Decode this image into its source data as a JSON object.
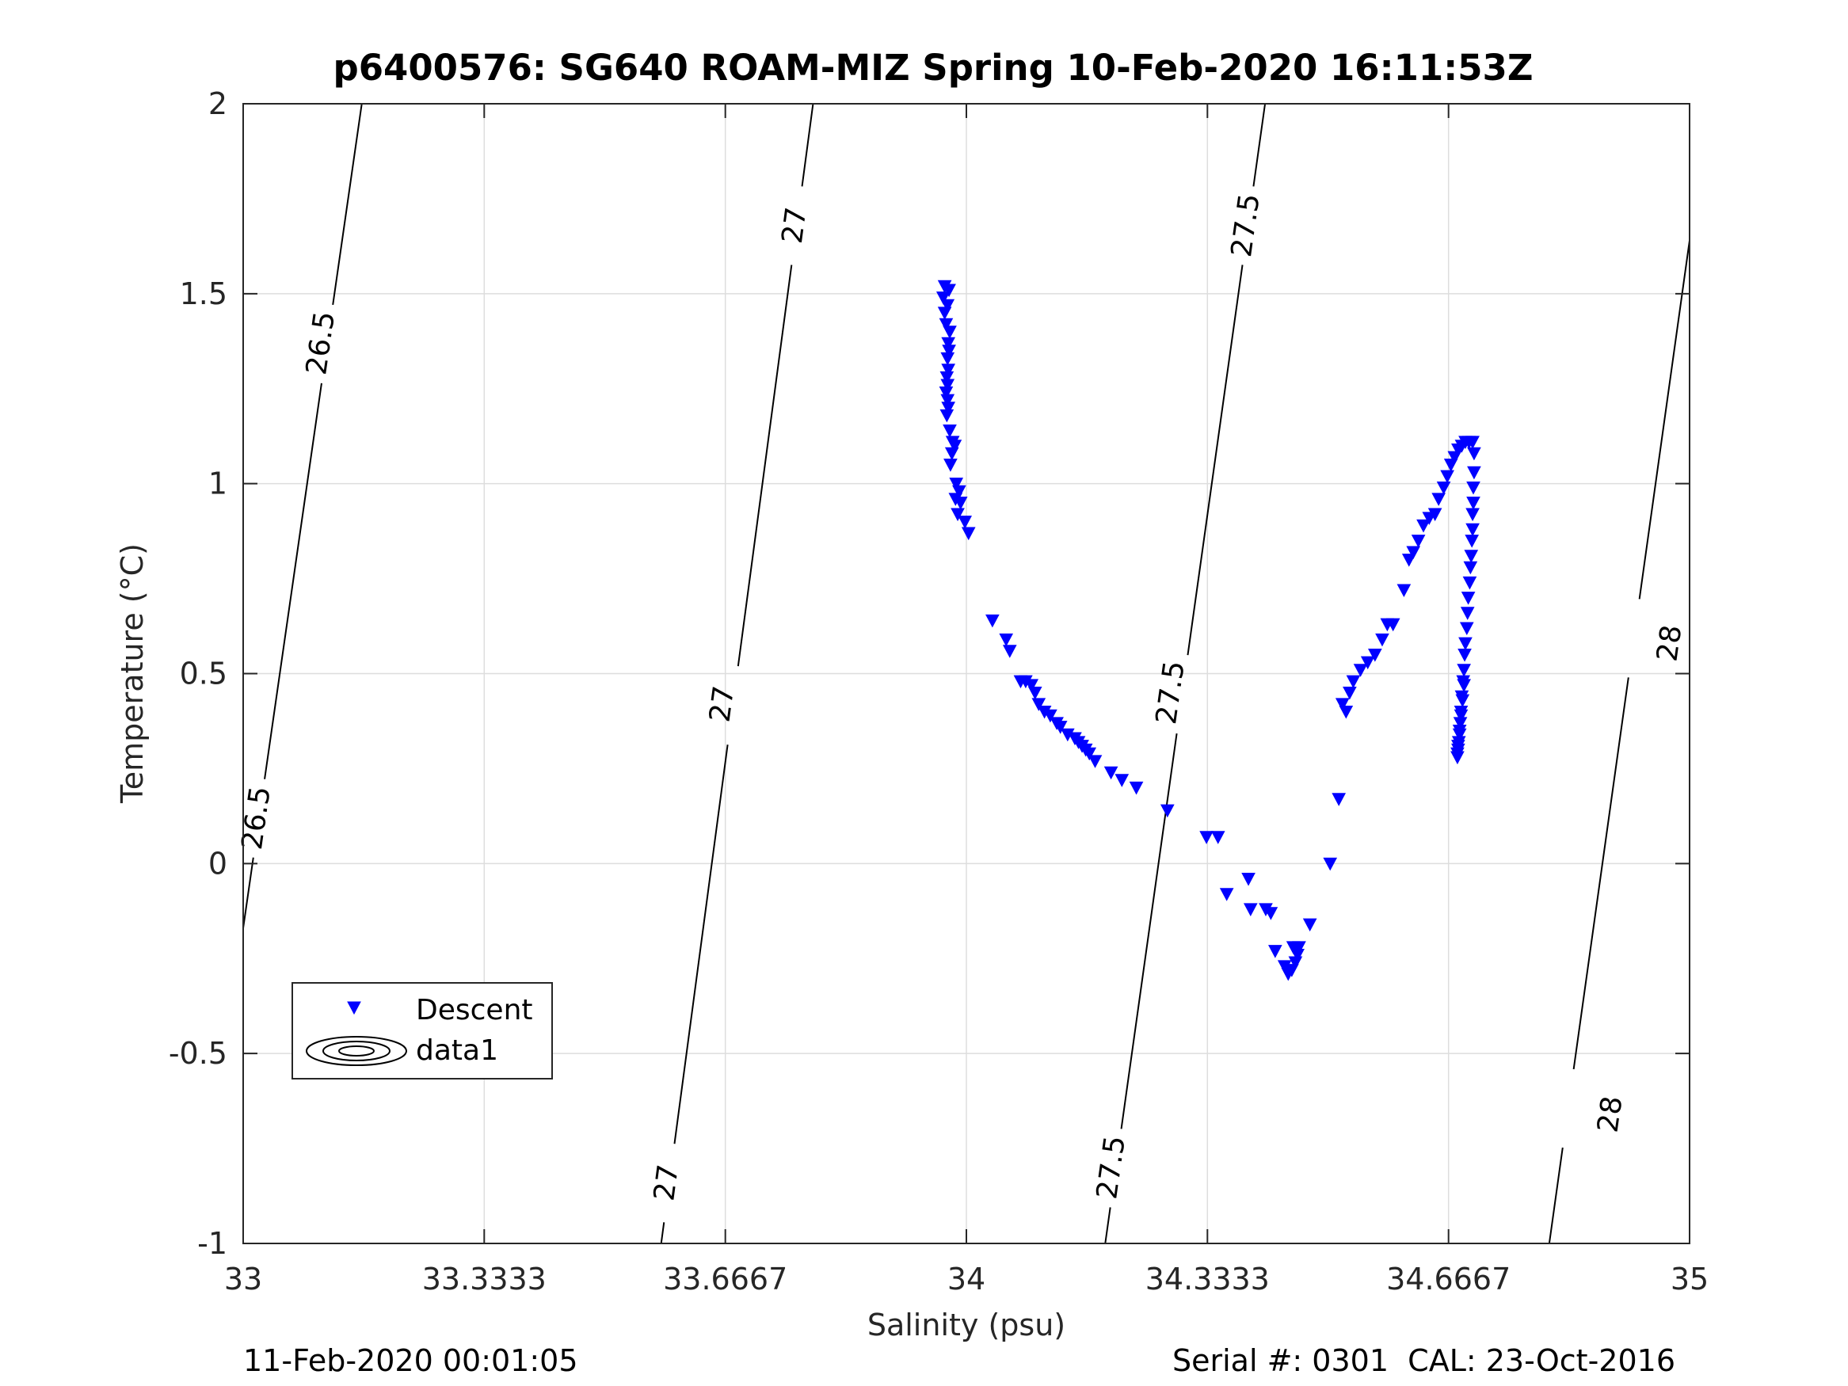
{
  "chart_data": {
    "type": "scatter",
    "title": "p6400576: SG640 ROAM-MIZ Spring 10-Feb-2020 16:11:53Z",
    "xlabel": "Salinity (psu)",
    "ylabel": "Temperature (°C)",
    "xlim": [
      33,
      35
    ],
    "ylim": [
      -1,
      2
    ],
    "xticks": [
      33,
      33.3333,
      33.6667,
      34,
      34.3333,
      34.6667,
      35
    ],
    "xtick_labels": [
      "33",
      "33.3333",
      "33.6667",
      "34",
      "34.3333",
      "34.6667",
      "35"
    ],
    "yticks": [
      -1,
      -0.5,
      0,
      0.5,
      1,
      1.5,
      2
    ],
    "ytick_labels": [
      "-1",
      "-0.5",
      "0",
      "0.5",
      "1",
      "1.5",
      "2"
    ],
    "grid": true,
    "legend": {
      "placement": "lower-left",
      "entries": [
        "Descent",
        "data1"
      ]
    },
    "footer_left": "11-Feb-2020 00:01:05",
    "footer_right": "Serial #: 0301  CAL: 23-Oct-2016",
    "colors": {
      "series": "#0000ff",
      "contour": "#000000",
      "grid": "#dddddd"
    },
    "series": [
      {
        "name": "Descent",
        "marker": "triangle-down",
        "points": [
          [
            33.97,
            1.52
          ],
          [
            33.976,
            1.51
          ],
          [
            33.968,
            1.49
          ],
          [
            33.974,
            1.47
          ],
          [
            33.97,
            1.45
          ],
          [
            33.972,
            1.42
          ],
          [
            33.977,
            1.4
          ],
          [
            33.975,
            1.37
          ],
          [
            33.976,
            1.35
          ],
          [
            33.974,
            1.33
          ],
          [
            33.975,
            1.3
          ],
          [
            33.973,
            1.28
          ],
          [
            33.974,
            1.26
          ],
          [
            33.972,
            1.24
          ],
          [
            33.974,
            1.22
          ],
          [
            33.975,
            1.2
          ],
          [
            33.973,
            1.18
          ],
          [
            33.977,
            1.14
          ],
          [
            33.981,
            1.11
          ],
          [
            33.984,
            1.1
          ],
          [
            33.98,
            1.08
          ],
          [
            33.978,
            1.05
          ],
          [
            33.986,
            1.0
          ],
          [
            33.99,
            0.98
          ],
          [
            33.985,
            0.96
          ],
          [
            33.992,
            0.95
          ],
          [
            33.988,
            0.92
          ],
          [
            33.998,
            0.9
          ],
          [
            34.003,
            0.87
          ],
          [
            34.036,
            0.64
          ],
          [
            34.055,
            0.59
          ],
          [
            34.06,
            0.56
          ],
          [
            34.075,
            0.48
          ],
          [
            34.082,
            0.48
          ],
          [
            34.09,
            0.47
          ],
          [
            34.095,
            0.45
          ],
          [
            34.1,
            0.42
          ],
          [
            34.108,
            0.4
          ],
          [
            34.116,
            0.39
          ],
          [
            34.125,
            0.37
          ],
          [
            34.13,
            0.36
          ],
          [
            34.14,
            0.34
          ],
          [
            34.15,
            0.33
          ],
          [
            34.155,
            0.32
          ],
          [
            34.16,
            0.31
          ],
          [
            34.165,
            0.3
          ],
          [
            34.17,
            0.29
          ],
          [
            34.178,
            0.27
          ],
          [
            34.2,
            0.24
          ],
          [
            34.215,
            0.22
          ],
          [
            34.235,
            0.2
          ],
          [
            34.278,
            0.14
          ],
          [
            34.332,
            0.07
          ],
          [
            34.348,
            0.07
          ],
          [
            34.36,
            -0.08
          ],
          [
            34.39,
            -0.04
          ],
          [
            34.393,
            -0.12
          ],
          [
            34.414,
            -0.12
          ],
          [
            34.421,
            -0.13
          ],
          [
            34.427,
            -0.23
          ],
          [
            34.44,
            -0.27
          ],
          [
            34.445,
            -0.29
          ],
          [
            34.45,
            -0.28
          ],
          [
            34.455,
            -0.26
          ],
          [
            34.458,
            -0.24
          ],
          [
            34.46,
            -0.22
          ],
          [
            34.452,
            -0.22
          ],
          [
            34.475,
            -0.16
          ],
          [
            34.503,
            0.0
          ],
          [
            34.515,
            0.17
          ],
          [
            34.52,
            0.42
          ],
          [
            34.525,
            0.4
          ],
          [
            34.53,
            0.45
          ],
          [
            34.535,
            0.48
          ],
          [
            34.545,
            0.51
          ],
          [
            34.555,
            0.53
          ],
          [
            34.565,
            0.55
          ],
          [
            34.575,
            0.59
          ],
          [
            34.582,
            0.63
          ],
          [
            34.59,
            0.63
          ],
          [
            34.605,
            0.72
          ],
          [
            34.612,
            0.8
          ],
          [
            34.618,
            0.82
          ],
          [
            34.625,
            0.85
          ],
          [
            34.632,
            0.89
          ],
          [
            34.64,
            0.91
          ],
          [
            34.648,
            0.92
          ],
          [
            34.653,
            0.96
          ],
          [
            34.66,
            0.99
          ],
          [
            34.665,
            1.02
          ],
          [
            34.67,
            1.05
          ],
          [
            34.675,
            1.07
          ],
          [
            34.68,
            1.09
          ],
          [
            34.685,
            1.1
          ],
          [
            34.69,
            1.11
          ],
          [
            34.695,
            1.11
          ],
          [
            34.7,
            1.11
          ],
          [
            34.702,
            1.08
          ],
          [
            34.702,
            1.03
          ],
          [
            34.701,
            0.99
          ],
          [
            34.701,
            0.95
          ],
          [
            34.7,
            0.92
          ],
          [
            34.7,
            0.88
          ],
          [
            34.699,
            0.85
          ],
          [
            34.698,
            0.81
          ],
          [
            34.697,
            0.78
          ],
          [
            34.696,
            0.74
          ],
          [
            34.694,
            0.7
          ],
          [
            34.693,
            0.66
          ],
          [
            34.692,
            0.62
          ],
          [
            34.69,
            0.58
          ],
          [
            34.689,
            0.55
          ],
          [
            34.688,
            0.51
          ],
          [
            34.687,
            0.48
          ],
          [
            34.685,
            0.44
          ],
          [
            34.684,
            0.4
          ],
          [
            34.683,
            0.37
          ],
          [
            34.682,
            0.34
          ],
          [
            34.681,
            0.32
          ],
          [
            34.68,
            0.3
          ],
          [
            34.679,
            0.29
          ],
          [
            34.679,
            0.28
          ],
          [
            34.68,
            0.31
          ],
          [
            34.682,
            0.35
          ],
          [
            34.684,
            0.39
          ],
          [
            34.686,
            0.43
          ],
          [
            34.688,
            0.47
          ]
        ]
      }
    ],
    "contours": [
      {
        "level": "26.5",
        "points": [
          [
            33.0,
            -0.17
          ],
          [
            33.164,
            2.0
          ]
        ],
        "labels": [
          {
            "text": "26.5",
            "x": 33.107,
            "y": 1.37
          },
          {
            "text": "26.5",
            "x": 33.018,
            "y": 0.12
          }
        ]
      },
      {
        "level": "27",
        "points": [
          [
            33.578,
            -1.0
          ],
          [
            33.788,
            2.0
          ]
        ],
        "labels": [
          {
            "text": "27",
            "x": 33.762,
            "y": 1.68
          },
          {
            "text": "27",
            "x": 33.662,
            "y": 0.42
          },
          {
            "text": "27",
            "x": 33.585,
            "y": -0.84
          }
        ]
      },
      {
        "level": "27.5",
        "points": [
          [
            34.192,
            -1.0
          ],
          [
            34.413,
            2.0
          ]
        ],
        "labels": [
          {
            "text": "27.5",
            "x": 34.386,
            "y": 1.68
          },
          {
            "text": "27.5",
            "x": 34.282,
            "y": 0.45
          },
          {
            "text": "27.5",
            "x": 34.2,
            "y": -0.8
          }
        ]
      },
      {
        "level": "28",
        "points": [
          [
            34.806,
            -1.0
          ],
          [
            35.0,
            1.64
          ]
        ],
        "labels": [
          {
            "text": "28",
            "x": 34.972,
            "y": 0.58
          },
          {
            "text": "28",
            "x": 34.89,
            "y": -0.66
          }
        ]
      }
    ]
  }
}
